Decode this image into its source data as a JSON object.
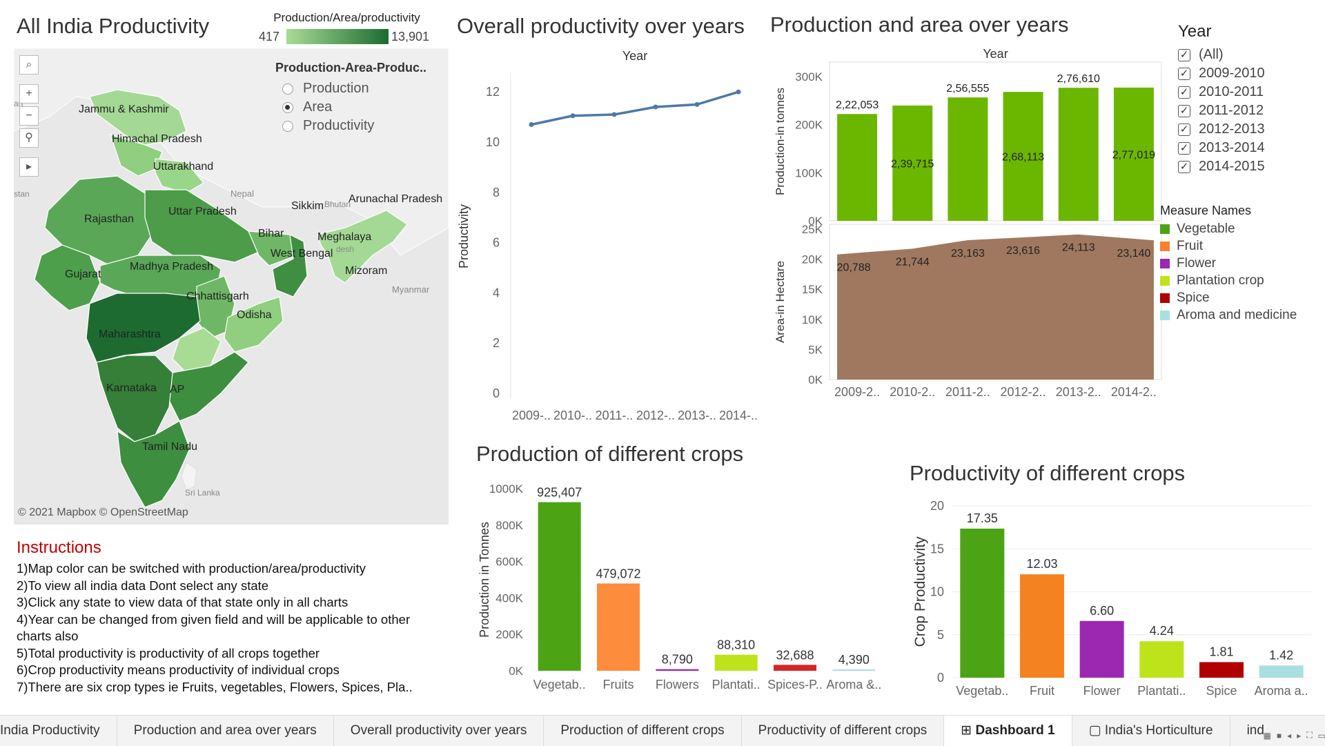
{
  "titles": {
    "map": "All India Productivity",
    "overall": "Overall productivity over years",
    "prodarea": "Production and area over years",
    "prodcrops": "Production of different crops",
    "productivitycrops": "Productivity of different crops"
  },
  "map": {
    "legend_title": "Production/Area/productivity",
    "legend_min": "417",
    "legend_max": "13,901",
    "param_title": "Production-Area-Produc..",
    "options": [
      "Production",
      "Area",
      "Productivity"
    ],
    "selected": "Area",
    "attribution": "© 2021 Mapbox © OpenStreetMap",
    "labels": [
      "Jammu & Kashmir",
      "Himachal Pradesh",
      "Uttarakhand",
      "Nepal",
      "Sikkim",
      "Bhutan",
      "Arunachal Pradesh",
      "Rajasthan",
      "Uttar Pradesh",
      "Bihar",
      "Meghalaya",
      "West Bengal",
      "desh",
      "Mizoram",
      "Myanmar",
      "Gujarat",
      "Madhya Pradesh",
      "Chhattisgarh",
      "Odisha",
      "Maharashtra",
      "Karnataka",
      "AP",
      "Tamil Nadu",
      "Sri Lanka",
      "stan",
      "an"
    ]
  },
  "year_filter": {
    "title": "Year",
    "items": [
      "(All)",
      "2009-2010",
      "2010-2011",
      "2011-2012",
      "2012-2013",
      "2013-2014",
      "2014-2015"
    ]
  },
  "measure_legend": {
    "title": "Measure Names",
    "items": [
      {
        "name": "Vegetable",
        "color": "#4ca415"
      },
      {
        "name": "Fruit",
        "color": "#f58231"
      },
      {
        "name": "Flower",
        "color": "#9c27b0"
      },
      {
        "name": "Plantation crop",
        "color": "#bfe31a"
      },
      {
        "name": "Spice",
        "color": "#b00000"
      },
      {
        "name": "Aroma and medicine",
        "color": "#a8e0e0"
      }
    ]
  },
  "instructions": {
    "title": "Instructions",
    "lines": [
      "1)Map color can be switched with production/area/productivity",
      "2)To view all india data Dont select any state",
      "3)Click any state to view data of that state only in all charts",
      "4)Year can be changed from given field and will be applicable to other",
      "charts also",
      "5)Total productivity is productivity of all crops together",
      "6)Crop productivity means productivity of individual crops",
      "7)There are six crop types ie Fruits, vegetables, Flowers, Spices, Pla.."
    ]
  },
  "tabs": [
    "India Productivity",
    "Production and area over years",
    "Overall productivity over years",
    "Production of different crops",
    "Productivity of different crops",
    "Dashboard 1",
    "India's Horticulture",
    "india productivity"
  ],
  "active_tab": "Dashboard 1",
  "chart_data": [
    {
      "id": "overall",
      "type": "line",
      "title": "Overall productivity over years",
      "xlabel": "Year",
      "ylabel": "Productivity",
      "categories": [
        "2009-..",
        "2010-..",
        "2011-..",
        "2012-..",
        "2013-..",
        "2014-.."
      ],
      "values": [
        10.7,
        11.05,
        11.1,
        11.4,
        11.5,
        12.0
      ],
      "ylim": [
        0,
        12.5
      ],
      "yticks": [
        0,
        2,
        4,
        6,
        8,
        10,
        12
      ],
      "color": "#4e79a7"
    },
    {
      "id": "production_years",
      "type": "bar",
      "xlabel": "Year",
      "ylabel": "Production-in tonnes",
      "categories": [
        "2009-2..",
        "2010-2..",
        "2011-2..",
        "2012-2..",
        "2013-2..",
        "2014-2.."
      ],
      "values": [
        222053,
        239715,
        256555,
        268113,
        276610,
        277019
      ],
      "labels": [
        "2,22,053",
        "2,39,715",
        "2,56,555",
        "2,68,113",
        "2,76,610",
        "2,77,019"
      ],
      "ylim": [
        0,
        330000
      ],
      "yticks": [
        "0K",
        "100K",
        "200K",
        "300K"
      ],
      "color": "#6bb700"
    },
    {
      "id": "area_years",
      "type": "area",
      "ylabel": "Area-in Hectare",
      "categories": [
        "2009-2..",
        "2010-2..",
        "2011-2..",
        "2012-2..",
        "2013-2..",
        "2014-2.."
      ],
      "values": [
        20788,
        21744,
        23163,
        23616,
        24113,
        23140
      ],
      "labels": [
        "20,788",
        "21,744",
        "23,163",
        "23,616",
        "24,113",
        "23,140"
      ],
      "ylim": [
        0,
        25800
      ],
      "yticks": [
        "0K",
        "5K",
        "10K",
        "15K",
        "20K",
        "25K"
      ],
      "color": "#a0785f"
    },
    {
      "id": "production_crops",
      "type": "bar",
      "title": "Production of different crops",
      "ylabel": "Production in Tonnes",
      "categories": [
        "Vegetab..",
        "Fruits",
        "Flowers",
        "Plantati..",
        "Spices-P..",
        "Aroma &.."
      ],
      "values": [
        925407,
        479072,
        8790,
        88310,
        32688,
        4390
      ],
      "labels": [
        "925,407",
        "479,072",
        "8,790",
        "88,310",
        "32,688",
        "4,390"
      ],
      "colors": [
        "#4ca415",
        "#fd8c3c",
        "#9c27b0",
        "#bfe31a",
        "#d62728",
        "#a8e0e0"
      ],
      "ylim": [
        0,
        1000000
      ],
      "yticks": [
        "0K",
        "200K",
        "400K",
        "600K",
        "800K",
        "1000K"
      ]
    },
    {
      "id": "productivity_crops",
      "type": "bar",
      "title": "Productivity of different crops",
      "ylabel": "Crop Productivity",
      "categories": [
        "Vegetab..",
        "Fruit",
        "Flower",
        "Plantati..",
        "Spice",
        "Aroma a.."
      ],
      "values": [
        17.35,
        12.03,
        6.6,
        4.24,
        1.81,
        1.42
      ],
      "labels": [
        "17.35",
        "12.03",
        "6.60",
        "4.24",
        "1.81",
        "1.42"
      ],
      "colors": [
        "#4ca415",
        "#f58220",
        "#9c27b0",
        "#bfe31a",
        "#b00000",
        "#a8e0e0"
      ],
      "ylim": [
        0,
        20
      ],
      "yticks": [
        "0",
        "5",
        "10",
        "15",
        "20"
      ]
    }
  ]
}
